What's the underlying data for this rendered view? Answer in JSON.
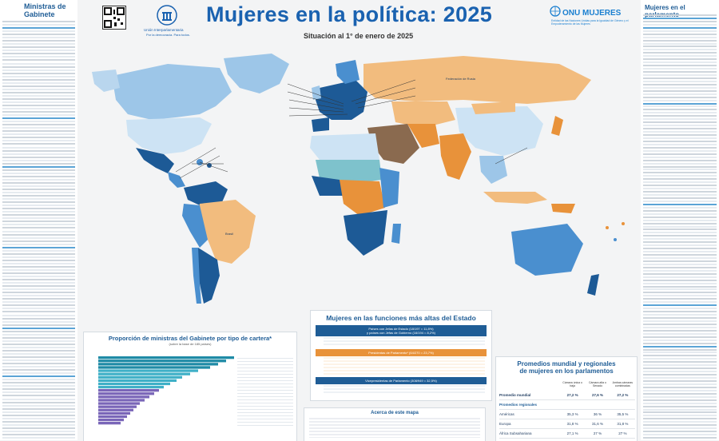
{
  "title": "Mujeres en la política: 2025",
  "subtitle": "Situación al 1° de enero de 2025",
  "logos": {
    "ipu_line1": "Unión Interparlamentaria",
    "ipu_line2": "Por la democracia. Para todos.",
    "un_women": "ONU MUJERES",
    "un_women_sub": "Entidad de las Naciones Unidas para la Igualdad de Género y el Empoderamiento de las Mujeres",
    "qr_icon": "qr-code-icon",
    "ipu_icon": "ipu-columns-icon"
  },
  "left_panel": {
    "title_line1": "Ministras de",
    "title_line2": "Gabinete"
  },
  "right_panel": {
    "title": "Mujeres en el parlamento"
  },
  "highest_positions": {
    "title": "Mujeres en las funciones más altas del Estado",
    "heads_line1": "Países con Jefas de Estado (18/197 = 11,8%)",
    "heads_line2": "y países con Jefas de Gobierno (16/194 = 8,2%)",
    "speakers": "Presidentas de Parlamento* (64/270 = 23,7%)",
    "vice": "Vicepresidentas de Parlamento (308/949 = 32,5%)"
  },
  "portfolio_chart": {
    "title": "Proporción de ministras del Gabinete por tipo de cartera*",
    "subtitle": "(sobre la base de 185 países)"
  },
  "averages": {
    "title_line1": "Promedios mundial y regionales",
    "title_line2": "de mujeres en los parlamentos",
    "col_headers": [
      "Cámara única o baja",
      "Cámara alta o Senado",
      "Ambas cámaras combinadas"
    ],
    "rows": [
      {
        "label": "Promedio mundial",
        "values": [
          "27,2 %",
          "27,6 %",
          "27,2 %"
        ]
      },
      {
        "label": "Promedios regionales",
        "values": [
          "",
          "",
          ""
        ]
      },
      {
        "label": "Américas",
        "values": [
          "35,3 %",
          "36 %",
          "35,5 %"
        ]
      },
      {
        "label": "Europa",
        "values": [
          "31,8 %",
          "31,6 %",
          "31,8 %"
        ]
      },
      {
        "label": "África Subsahariana",
        "values": [
          "27,1 %",
          "27 %",
          "27 %"
        ]
      }
    ]
  },
  "about_map": {
    "title": "Acerca de este mapa"
  },
  "map_labels": {
    "federacion_rusia": "Federación de Rusia",
    "brasil": "Brasil",
    "colors": {
      "dark_blue": "#1d5a96",
      "mid_blue": "#4a8fcf",
      "light_blue": "#9dc6e8",
      "pale_blue": "#cde3f4",
      "orange": "#e8923a",
      "light_orange": "#f2bc7e",
      "brown": "#8a6a4f",
      "teal": "#7ec2cc"
    }
  }
}
